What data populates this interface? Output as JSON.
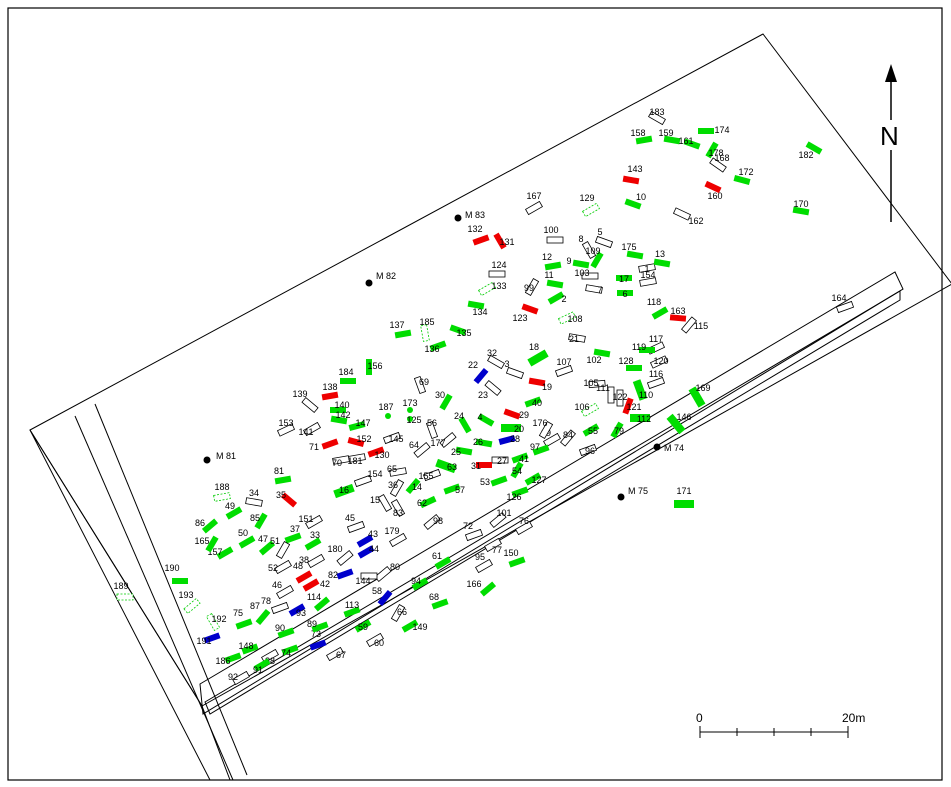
{
  "colors": {
    "green": "#00dd00",
    "red": "#ee0000",
    "blue": "#0000cc",
    "outline": "#000000",
    "dashed": "#00cc00"
  },
  "north_label": "N",
  "scale": {
    "start": "0",
    "end": "20m"
  },
  "markers": [
    "M 81",
    "M 82",
    "M 83",
    "M 74",
    "M 75"
  ],
  "features": {
    "green": [
      "158",
      "159",
      "161",
      "174",
      "178",
      "182",
      "172",
      "170",
      "10",
      "17",
      "6",
      "13",
      "175",
      "109",
      "9",
      "12",
      "11",
      "2",
      "134",
      "136",
      "135",
      "137",
      "18",
      "102",
      "119",
      "128",
      "163",
      "118",
      "169",
      "146",
      "171",
      "112",
      "110",
      "79",
      "55",
      "4",
      "24",
      "30",
      "20",
      "40",
      "26",
      "25",
      "63",
      "57",
      "16",
      "154",
      "140",
      "142",
      "147",
      "187",
      "173",
      "184",
      "156",
      "81",
      "49",
      "86",
      "50",
      "85",
      "47",
      "165",
      "157",
      "37",
      "33",
      "53",
      "126",
      "127",
      "41",
      "54",
      "97",
      "62",
      "14",
      "94",
      "61",
      "150",
      "166",
      "58",
      "68",
      "59",
      "149",
      "114",
      "113",
      "87",
      "75",
      "148",
      "89",
      "90",
      "74",
      "191",
      "190",
      "186",
      "91",
      "73"
    ],
    "red": [
      "143",
      "160",
      "132",
      "131",
      "123",
      "138",
      "71",
      "152",
      "130",
      "35",
      "48",
      "42",
      "29",
      "31",
      "19",
      "121",
      "163"
    ],
    "blue": [
      "22",
      "28",
      "43",
      "44",
      "82",
      "58",
      "93",
      "191",
      "73"
    ],
    "outline": [
      "183",
      "168",
      "162",
      "167",
      "100",
      "5",
      "8",
      "1",
      "154",
      "124",
      "133",
      "99",
      "103",
      "7",
      "3",
      "32",
      "23",
      "107",
      "105",
      "111",
      "122",
      "106",
      "115",
      "117",
      "120",
      "116",
      "21",
      "139",
      "153",
      "141",
      "145",
      "64",
      "56",
      "177",
      "65",
      "155",
      "36",
      "15",
      "83",
      "34",
      "188",
      "151",
      "45",
      "179",
      "180",
      "52",
      "51",
      "38",
      "46",
      "78",
      "92",
      "88",
      "67",
      "66",
      "144",
      "80",
      "95",
      "72",
      "77",
      "101",
      "76",
      "98",
      "39",
      "96",
      "84",
      "176",
      "27",
      "185",
      "189",
      "193",
      "129",
      "108"
    ]
  }
}
